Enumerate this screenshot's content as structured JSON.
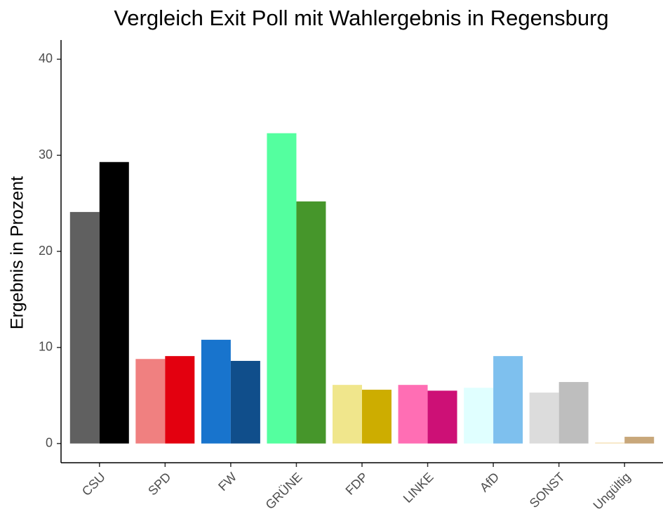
{
  "chart_data": {
    "type": "bar",
    "title": "Vergleich Exit Poll mit Wahlergebnis in Regensburg",
    "ylabel": "Ergebnis in Prozent",
    "categories": [
      "CSU",
      "SPD",
      "FW",
      "GRÜNE",
      "FDP",
      "LINKE",
      "AfD",
      "SONST",
      "Ungültig"
    ],
    "series": [
      {
        "colors": [
          "#606060",
          "#f08080",
          "#1874cd",
          "#54ff9f",
          "#f0e68c",
          "#ff6eb4",
          "#e0ffff",
          "#dcdcdc",
          "#f5deb3"
        ],
        "values": [
          24.1,
          8.8,
          10.8,
          32.3,
          6.1,
          6.1,
          5.8,
          5.3,
          0.1
        ]
      },
      {
        "colors": [
          "#000000",
          "#e3000f",
          "#104e8b",
          "#46962b",
          "#cdad00",
          "#cd1076",
          "#7ec0ee",
          "#bebebe",
          "#c8a77a"
        ],
        "values": [
          29.3,
          9.1,
          8.6,
          25.2,
          5.6,
          5.5,
          9.1,
          6.4,
          0.7
        ]
      }
    ],
    "ylim": [
      -2,
      42
    ],
    "yticks": [
      0,
      10,
      20,
      30,
      40
    ],
    "grid": false
  }
}
